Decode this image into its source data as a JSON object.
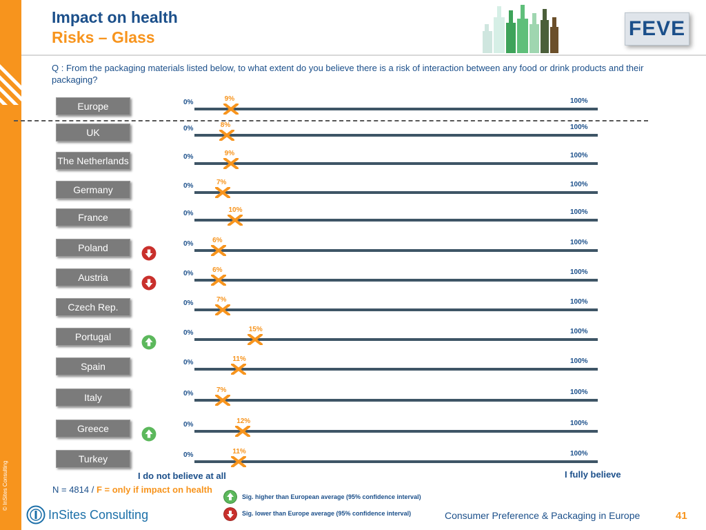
{
  "header": {
    "title": "Impact on health",
    "subtitle": "Risks – Glass",
    "logo_text": "FEVE"
  },
  "question": "Q : From the packaging materials listed below, to what extent do you believe there is a risk of interaction between any food or drink products and their packaging?",
  "chart_data": {
    "type": "scatter",
    "xlabel_left": "I do not believe at all",
    "xlabel_right": "I fully believe",
    "scale_min_label": "0%",
    "scale_max_label": "100%",
    "xlim": [
      0,
      100
    ],
    "categories": [
      "Europe",
      "UK",
      "The Netherlands",
      "Germany",
      "France",
      "Poland",
      "Austria",
      "Czech Rep.",
      "Portugal",
      "Spain",
      "Italy",
      "Greece",
      "Turkey"
    ],
    "values": [
      9,
      8,
      9,
      7,
      10,
      6,
      6,
      7,
      15,
      11,
      7,
      12,
      11
    ],
    "value_labels": [
      "9%",
      "8%",
      "9%",
      "7%",
      "10%",
      "6%",
      "6%",
      "7%",
      "15%",
      "11%",
      "7%",
      "12%",
      "11%"
    ],
    "significance": [
      "none",
      "none",
      "none",
      "none",
      "none",
      "lower",
      "lower",
      "none",
      "higher",
      "none",
      "none",
      "higher",
      "none"
    ],
    "marker_color": "#f7941d",
    "bar_color": "#3e5566"
  },
  "footnote": {
    "n_text": "N = 4814 / ",
    "f_text": "F = only if impact on health"
  },
  "legend": {
    "higher": "Sig. higher than European average (95% confidence interval)",
    "lower": "Sig. lower than Europe average (95% confidence interval)",
    "higher_color": "#5cb85c",
    "lower_color": "#c9302c"
  },
  "footer": {
    "company": "InSites Consulting",
    "copyright": "© InSites Consulting",
    "report": "Consumer Preference & Packaging in Europe",
    "page": "41"
  }
}
